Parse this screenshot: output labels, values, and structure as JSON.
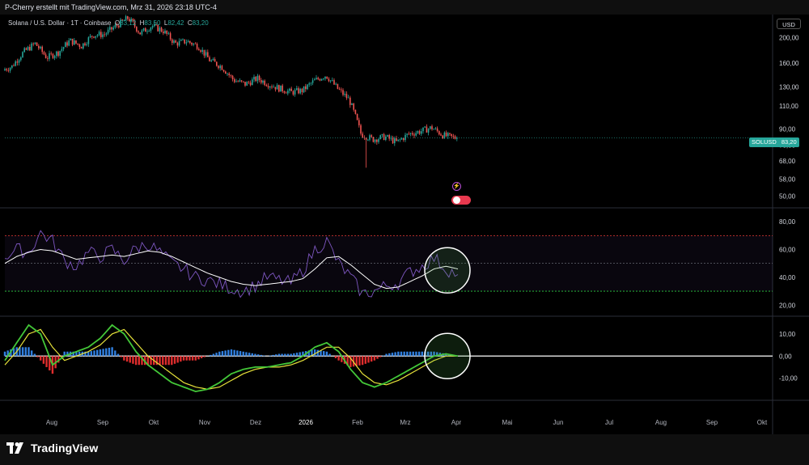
{
  "header": {
    "title": "P-Cherry erstellt mit TradingView.com, Mrz 31, 2026 23:18 UTC-4"
  },
  "legend": {
    "symbol": "Solana / U.S. Dollar · 1T · Coinbase",
    "o_label": "O",
    "o_value": "83,12",
    "h_label": "H",
    "h_value": "83,50",
    "l_label": "L",
    "l_value": "82,42",
    "c_label": "C",
    "c_value": "83,20"
  },
  "currency_button": "USD",
  "symbol_tag": {
    "name": "SOLUSD",
    "price": "83,20"
  },
  "footer": {
    "logo_text": "TradingView"
  },
  "colors": {
    "up": "#26a69a",
    "down": "#ef5350",
    "rsi": "#7e57c2",
    "rsi_ma": "#ffffff",
    "macd_fast": "#43c738",
    "macd_slow": "#e7e23a",
    "hist_pos": "#2f7fe0",
    "hist_neg": "#e02d2d",
    "overbought": "#e53935",
    "oversold": "#2ecc40"
  },
  "chart_data": [
    {
      "type": "candlestick",
      "title": "Solana / U.S. Dollar · 1T · Coinbase",
      "scale": "log",
      "ylim": [
        47,
        225
      ],
      "y_ticks": [
        "200,00",
        "160,00",
        "130,00",
        "110,00",
        "90,00",
        "78,00",
        "68,00",
        "58,00",
        "50,00"
      ],
      "y_tick_values": [
        200,
        160,
        130,
        110,
        90,
        78,
        68,
        58,
        50
      ],
      "x_ticks": [
        "Aug",
        "Sep",
        "Okt",
        "Nov",
        "Dez",
        "2026",
        "Feb",
        "Mrz",
        "Apr",
        "Mai",
        "Jun",
        "Jul",
        "Aug",
        "Sep",
        "Okt"
      ],
      "approx_closes_weekly": [
        {
          "date": "2025-07-08",
          "close": 155
        },
        {
          "date": "2025-07-15",
          "close": 176
        },
        {
          "date": "2025-07-22",
          "close": 190
        },
        {
          "date": "2025-07-29",
          "close": 168
        },
        {
          "date": "2025-08-05",
          "close": 176
        },
        {
          "date": "2025-08-12",
          "close": 195
        },
        {
          "date": "2025-08-19",
          "close": 186
        },
        {
          "date": "2025-08-26",
          "close": 205
        },
        {
          "date": "2025-09-02",
          "close": 206
        },
        {
          "date": "2025-09-09",
          "close": 222
        },
        {
          "date": "2025-09-16",
          "close": 238
        },
        {
          "date": "2025-09-23",
          "close": 208
        },
        {
          "date": "2025-09-30",
          "close": 222
        },
        {
          "date": "2025-10-07",
          "close": 212
        },
        {
          "date": "2025-10-14",
          "close": 190
        },
        {
          "date": "2025-10-21",
          "close": 194
        },
        {
          "date": "2025-10-28",
          "close": 186
        },
        {
          "date": "2025-11-04",
          "close": 164
        },
        {
          "date": "2025-11-11",
          "close": 155
        },
        {
          "date": "2025-11-18",
          "close": 138
        },
        {
          "date": "2025-11-25",
          "close": 133
        },
        {
          "date": "2025-12-02",
          "close": 140
        },
        {
          "date": "2025-12-09",
          "close": 133
        },
        {
          "date": "2025-12-16",
          "close": 128
        },
        {
          "date": "2025-12-23",
          "close": 124
        },
        {
          "date": "2025-12-30",
          "close": 126
        },
        {
          "date": "2026-01-06",
          "close": 137
        },
        {
          "date": "2026-01-13",
          "close": 144
        },
        {
          "date": "2026-01-20",
          "close": 128
        },
        {
          "date": "2026-01-27",
          "close": 116
        },
        {
          "date": "2026-02-03",
          "close": 86
        },
        {
          "date": "2026-02-10",
          "close": 82
        },
        {
          "date": "2026-02-17",
          "close": 84
        },
        {
          "date": "2026-02-24",
          "close": 80
        },
        {
          "date": "2026-03-03",
          "close": 86
        },
        {
          "date": "2026-03-10",
          "close": 88
        },
        {
          "date": "2026-03-17",
          "close": 91
        },
        {
          "date": "2026-03-24",
          "close": 85
        },
        {
          "date": "2026-03-31",
          "close": 83.2
        }
      ],
      "last_price": 83.2,
      "annotations": [
        "SOLUSD 83,20"
      ]
    },
    {
      "type": "line",
      "title": "",
      "ylim": [
        12,
        90
      ],
      "y_ticks": [
        "80,00",
        "60,00",
        "40,00",
        "20,00"
      ],
      "y_tick_values": [
        80,
        60,
        40,
        20
      ],
      "levels": [
        70,
        50,
        30
      ],
      "series": [
        {
          "name": "",
          "values": [
            55,
            60,
            58,
            72,
            66,
            52,
            48,
            58,
            55,
            60,
            52,
            61,
            64,
            58,
            50,
            46,
            40,
            38,
            35,
            32,
            30,
            34,
            40,
            38,
            36,
            45,
            60,
            66,
            50,
            40,
            28,
            30,
            34,
            36,
            44,
            48,
            54,
            46,
            42
          ]
        },
        {
          "name": "",
          "values": [
            50,
            55,
            58,
            60,
            59,
            56,
            53,
            54,
            55,
            56,
            55,
            57,
            59,
            58,
            55,
            51,
            47,
            43,
            40,
            37,
            35,
            34,
            35,
            36,
            37,
            39,
            46,
            54,
            55,
            49,
            42,
            35,
            32,
            33,
            37,
            41,
            46,
            48,
            46
          ]
        }
      ]
    },
    {
      "type": "line",
      "title": "",
      "ylim": [
        -20,
        18
      ],
      "y_ticks": [
        "10,00",
        "0,00",
        "-10,00"
      ],
      "y_tick_values": [
        10,
        0,
        -10
      ],
      "series": [
        {
          "name": "",
          "values": [
            -2,
            6,
            14,
            10,
            -4,
            0,
            2,
            4,
            8,
            14,
            10,
            2,
            -4,
            -8,
            -12,
            -14,
            -16,
            -15,
            -12,
            -8,
            -6,
            -5,
            -5,
            -4,
            -3,
            0,
            4,
            6,
            2,
            -6,
            -12,
            -14,
            -12,
            -9,
            -6,
            -3,
            0,
            1,
            0
          ]
        },
        {
          "name": "",
          "values": [
            -4,
            2,
            10,
            12,
            4,
            -2,
            0,
            2,
            5,
            10,
            12,
            6,
            0,
            -4,
            -8,
            -12,
            -14,
            -15,
            -14,
            -11,
            -8,
            -6,
            -5,
            -5,
            -4,
            -2,
            1,
            4,
            4,
            -1,
            -8,
            -12,
            -13,
            -11,
            -8,
            -5,
            -2,
            0,
            0
          ]
        }
      ],
      "histogram": [
        2,
        4,
        4,
        -2,
        -8,
        2,
        2,
        2,
        3,
        4,
        -2,
        -4,
        -4,
        -4,
        -4,
        -2,
        -2,
        0,
        2,
        3,
        2,
        1,
        0,
        1,
        1,
        2,
        3,
        2,
        -2,
        -5,
        -4,
        -2,
        1,
        2,
        2,
        2,
        2,
        1,
        0
      ]
    }
  ]
}
